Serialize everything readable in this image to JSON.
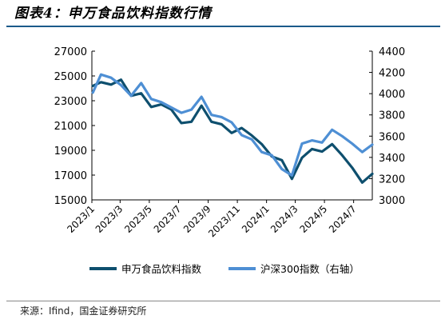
{
  "header": {
    "title": "图表4：申万食品饮料指数行情"
  },
  "footer": {
    "source": "来源：Ifind，国金证券研究所"
  },
  "chart_data": {
    "type": "line",
    "title": "图表4：申万食品饮料指数行情",
    "x": [
      "2023/1/3",
      "2023/1/20",
      "2023/2/10",
      "2023/3/3",
      "2023/3/24",
      "2023/4/14",
      "2023/5/5",
      "2023/5/26",
      "2023/6/16",
      "2023/7/7",
      "2023/7/28",
      "2023/8/18",
      "2023/9/8",
      "2023/9/29",
      "2023/10/20",
      "2023/11/10",
      "2023/12/1",
      "2023/12/22",
      "2024/1/12",
      "2024/2/2",
      "2024/2/23",
      "2024/3/15",
      "2024/4/5",
      "2024/4/26",
      "2024/5/17",
      "2024/6/7",
      "2024/6/28",
      "2024/7/19",
      "2024/8/9"
    ],
    "x_ticks": [
      "2023/1",
      "2023/3",
      "2023/5",
      "2023/7",
      "2023/9",
      "2023/11",
      "2024/1",
      "2024/3",
      "2024/5",
      "2024/7"
    ],
    "ylim_left": [
      15000,
      27000
    ],
    "ylim_right": [
      3000,
      4400
    ],
    "yticks_left": [
      15000,
      17000,
      19000,
      21000,
      23000,
      25000,
      27000
    ],
    "yticks_right": [
      3000,
      3200,
      3400,
      3600,
      3800,
      4000,
      4200,
      4400
    ],
    "grid": false,
    "legend_position": "bottom",
    "series": [
      {
        "name": "申万食品饮料指数",
        "axis": "left",
        "color": "#0e4f6e",
        "values": [
          24200,
          24500,
          24300,
          24700,
          23400,
          23600,
          22500,
          22700,
          22300,
          21200,
          21300,
          22600,
          21300,
          21100,
          20400,
          20800,
          20200,
          19500,
          18500,
          18200,
          16700,
          18400,
          19100,
          18900,
          19500,
          18600,
          17600,
          16400,
          17100
        ]
      },
      {
        "name": "沪深300指数（右轴）",
        "axis": "right",
        "color": "#4e8fd4",
        "values": [
          4010,
          4180,
          4150,
          4080,
          3980,
          4100,
          3950,
          3920,
          3870,
          3820,
          3850,
          3970,
          3800,
          3780,
          3730,
          3610,
          3570,
          3450,
          3420,
          3290,
          3230,
          3530,
          3560,
          3540,
          3660,
          3600,
          3530,
          3450,
          3520
        ]
      }
    ]
  }
}
